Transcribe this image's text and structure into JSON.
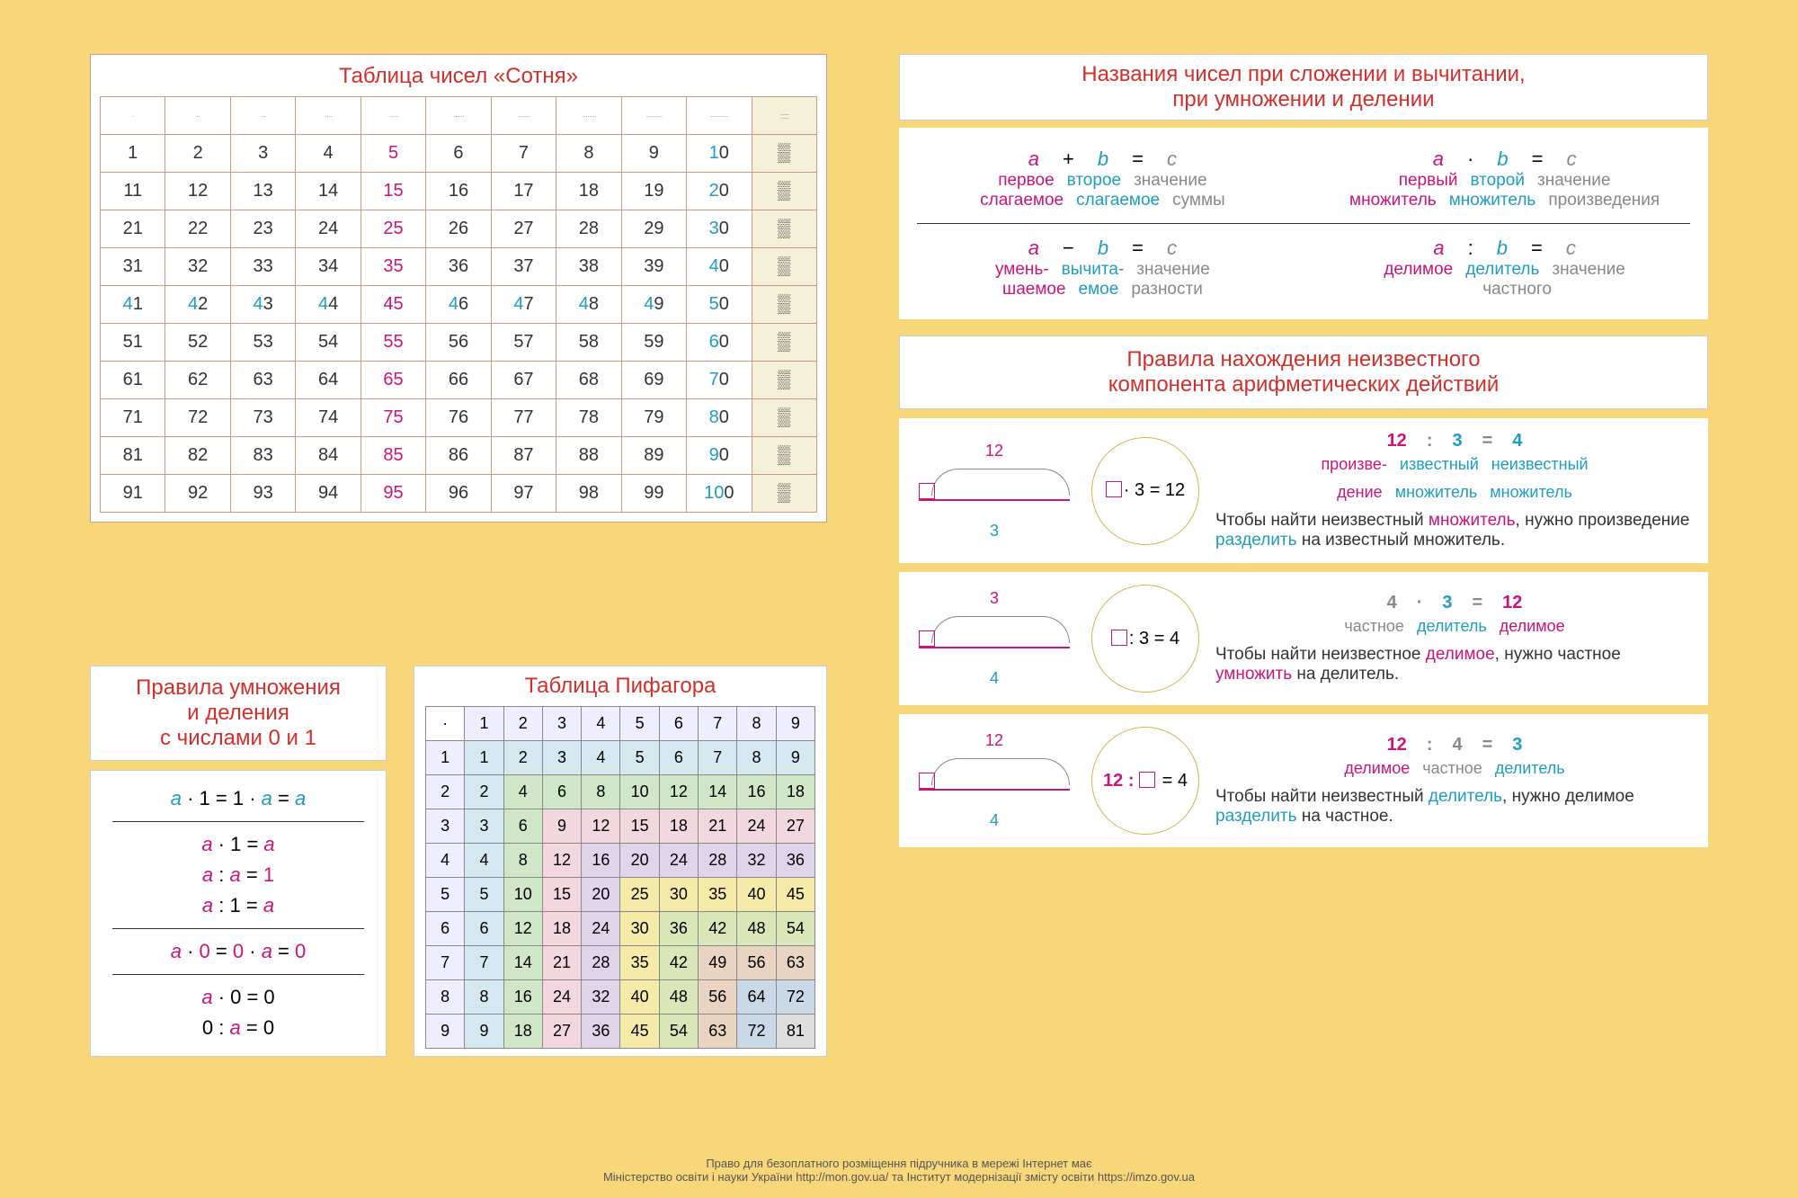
{
  "colors": {
    "page_bg": "#f8d77a",
    "panel_bg": "#ffffff",
    "title": "#d0302b",
    "magenta": "#c7157a",
    "cyan": "#1f9cbf",
    "grey": "#888888",
    "table_border": "#c98a5e"
  },
  "hundred": {
    "title": "Таблица чисел «Сотня»",
    "highlight_col5_color": "#c7157a",
    "highlight_tens_color": "#1f9cbf",
    "rows": 10,
    "cols": 11
  },
  "zo": {
    "title1": "Правила умножения",
    "title2": "и деления",
    "title3": "с числами 0 и 1",
    "lines": [
      {
        "t": "a · 1 = 1 · a = a",
        "a_cy": true
      },
      {
        "hr": true
      },
      {
        "t": "a · 1 = a"
      },
      {
        "t": "a : a = 1",
        "one_ma": true
      },
      {
        "t": "a : 1 = a"
      },
      {
        "hr": true
      },
      {
        "t": "a · 0 = 0 · a = 0",
        "zero_ma": true
      },
      {
        "hr": true
      },
      {
        "t": "a · 0 = 0"
      },
      {
        "t": "0 : a = 0"
      }
    ]
  },
  "pythagoras": {
    "title": "Таблица Пифагора",
    "size": 9,
    "diag_colors": {
      "1": "#d4e8f0",
      "2": "#cfe6c7",
      "3": "#f2d7de",
      "4": "#e0d4ea",
      "5": "#f5eaa7",
      "6": "#d9e6b8",
      "7": "#e8d4c0",
      "8": "#c9d9e8",
      "9": "#dedede"
    }
  },
  "naming": {
    "title1": "Названия чисел при сложении и вычитании,",
    "title2": "при умножении и делении",
    "add": {
      "sym": [
        "a",
        "+",
        "b",
        "=",
        "c"
      ],
      "lbl": [
        [
          "первое",
          "ma"
        ],
        [
          "второе",
          "cy"
        ],
        [
          "значение",
          "gr"
        ]
      ],
      "lbl2": [
        [
          "слагаемое",
          "ma"
        ],
        [
          "слагаемое",
          "cy"
        ],
        [
          "суммы",
          "gr"
        ]
      ]
    },
    "mul": {
      "sym": [
        "a",
        "·",
        "b",
        "=",
        "c"
      ],
      "lbl": [
        [
          "первый",
          "ma"
        ],
        [
          "второй",
          "cy"
        ],
        [
          "значение",
          "gr"
        ]
      ],
      "lbl2": [
        [
          "множитель",
          "ma"
        ],
        [
          "множитель",
          "cy"
        ],
        [
          "произведения",
          "gr"
        ]
      ]
    },
    "sub": {
      "sym": [
        "a",
        "−",
        "b",
        "=",
        "c"
      ],
      "lbl": [
        [
          "умень-",
          "ma"
        ],
        [
          "вычита-",
          "cy"
        ],
        [
          "значение",
          "gr"
        ]
      ],
      "lbl2": [
        [
          "шаемое",
          "ma"
        ],
        [
          "емое",
          "cy"
        ],
        [
          "разности",
          "gr"
        ]
      ]
    },
    "div": {
      "sym": [
        "a",
        ":",
        "b",
        "=",
        "c"
      ],
      "lbl": [
        [
          "делимое",
          "ma"
        ],
        [
          "делитель",
          "cy"
        ],
        [
          "значение",
          "gr"
        ]
      ],
      "lbl2": [
        [
          "",
          "ma"
        ],
        [
          "",
          "cy"
        ],
        [
          "частного",
          "gr"
        ]
      ]
    }
  },
  "rules": {
    "title1": "Правила нахождения неизвестного",
    "title2": "компонента арифметических действий",
    "items": [
      {
        "diag_top": "12",
        "diag_bot": "3",
        "circ": "· 3 = 12",
        "eq": [
          [
            "12",
            "ma"
          ],
          [
            ":",
            "gr"
          ],
          [
            "3",
            "cy"
          ],
          [
            "=",
            "gr"
          ],
          [
            "4",
            "cy"
          ]
        ],
        "lbls": [
          [
            "произве-",
            "ma"
          ],
          [
            "известный",
            "cy"
          ],
          [
            "неизвестный",
            "cy"
          ]
        ],
        "lbls2": [
          [
            "дение",
            "ma"
          ],
          [
            "множитель",
            "cy"
          ],
          [
            "множитель",
            "cy"
          ]
        ],
        "sent": [
          [
            "Чтобы найти неизвестный ",
            ""
          ],
          [
            "множитель",
            "ma"
          ],
          [
            ", нужно произведение ",
            ""
          ],
          [
            "разделить",
            "cy"
          ],
          [
            " на известный множитель.",
            ""
          ]
        ]
      },
      {
        "diag_top": "3",
        "diag_bot": "4",
        "circ": ": 3 = 4",
        "diag_top_cy": true,
        "eq": [
          [
            "4",
            "gr"
          ],
          [
            "·",
            "gr"
          ],
          [
            "3",
            "cy"
          ],
          [
            "=",
            "gr"
          ],
          [
            "12",
            "ma"
          ]
        ],
        "lbls": [
          [
            "частное",
            "gr"
          ],
          [
            "делитель",
            "cy"
          ],
          [
            "делимое",
            "ma"
          ]
        ],
        "lbls2": [],
        "sent": [
          [
            "Чтобы найти неизвестное ",
            ""
          ],
          [
            "делимое",
            "ma"
          ],
          [
            ", нужно частное ",
            ""
          ],
          [
            "умножить",
            "ma"
          ],
          [
            " на делитель.",
            ""
          ]
        ]
      },
      {
        "diag_top": "12",
        "diag_bot": "4",
        "circ_pre": "12 :",
        "circ_post": "= 4",
        "eq": [
          [
            "12",
            "ma"
          ],
          [
            ":",
            "gr"
          ],
          [
            "4",
            "gr"
          ],
          [
            "=",
            "gr"
          ],
          [
            "3",
            "cy"
          ]
        ],
        "lbls": [
          [
            "делимое",
            "ma"
          ],
          [
            "частное",
            "gr"
          ],
          [
            "делитель",
            "cy"
          ]
        ],
        "lbls2": [],
        "sent": [
          [
            "Чтобы найти неизвестный ",
            ""
          ],
          [
            "делитель",
            "cy"
          ],
          [
            ", нужно делимое ",
            ""
          ],
          [
            "разделить",
            "cy"
          ],
          [
            " на частное.",
            ""
          ]
        ]
      }
    ]
  },
  "footer": {
    "l1": "Право для безоплатного розміщення підручника в мережі Інтернет має",
    "l2": "Міністерство освіти і науки України http://mon.gov.ua/ та Інститут модернізації змісту освіти https://imzo.gov.ua"
  }
}
